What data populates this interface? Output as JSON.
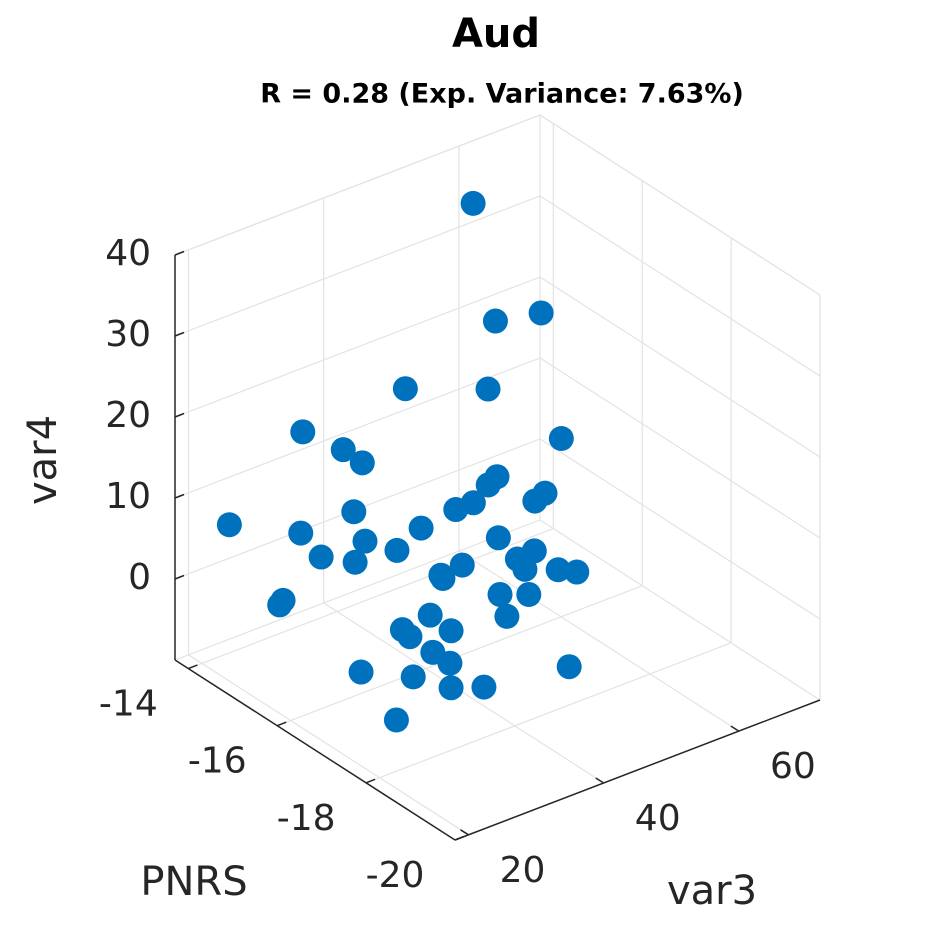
{
  "chart_data": {
    "type": "scatter3d",
    "title": "Aud",
    "subtitle": "R = 0.28 (Exp. Variance: 7.63%)",
    "xlabel": "PNRS",
    "ylabel": "var3",
    "zlabel": "var4",
    "color": "#0072bd",
    "grid": true,
    "xlim": [
      -20,
      -13.7
    ],
    "xticks": [
      -20,
      -18,
      -16,
      -14
    ],
    "ylim": [
      18,
      72
    ],
    "yticks": [
      20,
      40,
      60
    ],
    "zlim": [
      -10,
      40
    ],
    "zticks": [
      0,
      10,
      20,
      30,
      40
    ],
    "x": [
      -14.4,
      -15.9,
      -15.8,
      -16.1,
      -16.5,
      -15.1,
      -17.1,
      -15.6,
      -15.8,
      -16.9,
      -16.9,
      -16.9,
      -16.9,
      -16.9,
      -16.9,
      -15.7,
      -14.3,
      -16.5,
      -15.1,
      -16.9,
      -15.8,
      -16.2,
      -15.3,
      -15.7,
      -17.1,
      -17.1,
      -17.0,
      -17.3,
      -17.5,
      -17.6,
      -16.9,
      -16.9,
      -17.5,
      -17.6,
      -14.9,
      -14.9,
      -17.7,
      -17.1,
      -17.6,
      -16.9,
      -17.1,
      -17.6,
      -18.0,
      -16.7,
      -18.6,
      -17.6,
      -18.3,
      -18.4,
      -17.8
    ],
    "y": [
      57.5,
      57.7,
      51.6,
      36.3,
      45.9,
      27.7,
      52.8,
      30.4,
      31.9,
      44.6,
      43.3,
      51.7,
      50.2,
      41.1,
      38.5,
      31.3,
      22.1,
      36.0,
      27.4,
      44.8,
      32.3,
      34.4,
      29.1,
      31.5,
      48.8,
      46.3,
      38.8,
      46.1,
      49.7,
      51.8,
      36.3,
      36.6,
      41.1,
      44.7,
      26.1,
      25.6,
      40.8,
      33.4,
      33.2,
      30.6,
      30.4,
      30.5,
      30.4,
      25.8,
      44.1,
      27.6,
      28.6,
      32.8,
      23.8
    ],
    "z": [
      36.2,
      27.9,
      28.5,
      26.1,
      24.4,
      20.0,
      18.2,
      18.7,
      17.3,
      15.4,
      14.8,
      11.1,
      10.6,
      13.3,
      13.3,
      11.1,
      7.5,
      10.4,
      7.6,
      7.8,
      7.5,
      7.1,
      4.8,
      4.8,
      5.6,
      5.4,
      6.7,
      4.9,
      4.4,
      3.8,
      5.9,
      5.4,
      4.1,
      3.3,
      -1.0,
      -1.4,
      2.2,
      2.6,
      2.5,
      1.0,
      0.9,
      0.7,
      0.8,
      -3.4,
      -1.9,
      -1.4,
      -0.6,
      -1.5,
      -4.8
    ]
  }
}
